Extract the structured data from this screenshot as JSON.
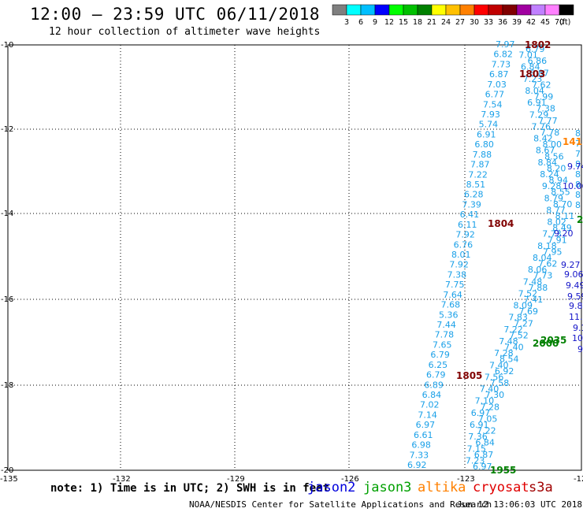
{
  "header": {
    "title": "12:00 – 23:59 UTC 06/11/2018",
    "subtitle": "12 hour collection of altimeter wave heights"
  },
  "colorscale": {
    "swatches": [
      "#7f7f7f",
      "#00ffff",
      "#00bfff",
      "#0000ff",
      "#00ff00",
      "#00c000",
      "#008000",
      "#ffff00",
      "#ffc000",
      "#ff8000",
      "#ff0000",
      "#c00000",
      "#800000",
      "#a000a0",
      "#c080ff",
      "#ff80ff",
      "#000000"
    ],
    "labels": [
      "3",
      "6",
      "9",
      "12",
      "15",
      "18",
      "21",
      "24",
      "27",
      "30",
      "33",
      "36",
      "39",
      "42",
      "45",
      "70"
    ],
    "unit": "(ft)"
  },
  "map": {
    "lat_labels": [
      "-10",
      "-12",
      "-14",
      "-16",
      "-18",
      "-20"
    ],
    "lon_labels": [
      "-135",
      "-132",
      "-129",
      "-126",
      "-123",
      "-12"
    ],
    "times": [
      {
        "text": "1802",
        "color": "#800000"
      },
      {
        "text": "1803",
        "color": "#800000"
      },
      {
        "text": "1804",
        "color": "#800000"
      },
      {
        "text": "1805",
        "color": "#800000"
      },
      {
        "text": "141",
        "color": "#ff8000"
      },
      {
        "text": "2",
        "color": "#008000"
      },
      {
        "text": "2035",
        "color": "#008000"
      },
      {
        "text": "2000",
        "color": "#008000"
      },
      {
        "text": "1955",
        "color": "#008000"
      }
    ],
    "left_track": [
      "7.97",
      "6.82",
      "7.73",
      "6.87",
      "7.03",
      "6.77",
      "7.54",
      "7.93",
      "5.74",
      "6.91",
      "6.80",
      "7.88",
      "7.87",
      "7.22",
      "8.51",
      "6.28",
      "7.39",
      "6.41",
      "6.11",
      "7.92",
      "6.76",
      "8.01",
      "7.92",
      "7.38",
      "7.75",
      "7.64",
      "7.68",
      "5.36",
      "7.44",
      "7.78",
      "7.65",
      "6.79",
      "6.25",
      "6.79",
      "6.89",
      "6.84",
      "7.02",
      "7.14",
      "6.97",
      "6.61",
      "6.98",
      "7.33",
      "6.92"
    ],
    "right_track": [
      "6.79",
      "7.01",
      "6.86",
      "6.84",
      "6.87",
      "7.23",
      "7.62",
      "8.04",
      "7.99",
      "6.91",
      "7.38",
      "7.29",
      "7.77",
      "7.76",
      "7.78",
      "8.42",
      "8.00",
      "8.67",
      "8.56",
      "8.84",
      "8.20",
      "8.24",
      "8.94",
      "9.28",
      "8.55",
      "8.79",
      "8.70",
      "8.77",
      "8.11",
      "8.02",
      "8.49",
      "7.73",
      "7.91",
      "8.18",
      "7.95",
      "8.04",
      "7.62",
      "8.06",
      "7.73",
      "7.48",
      "7.88",
      "7.52",
      "7.41",
      "8.09",
      "7.69",
      "7.83",
      "7.27",
      "7.22",
      "7.52",
      "7.48",
      "7.40",
      "7.28",
      "8.54",
      "7.40",
      "6.92",
      "7.56",
      "7.58",
      "7.40",
      "7.30",
      "7.10",
      "7.28",
      "6.97",
      "7.05",
      "6.91",
      "7.22",
      "7.36",
      "6.84",
      "7.15",
      "6.87",
      "7.23",
      "6.97"
    ],
    "far_right_blue": [
      "9.74",
      "10.06",
      "9.20",
      "9.27",
      "9.06",
      "9.49",
      "9.59",
      "9.8",
      "11.0",
      "9.1",
      "10",
      "9"
    ],
    "far_right_cyan": [
      "8",
      "7",
      "7",
      "8",
      "8",
      "8",
      "8",
      "8"
    ]
  },
  "footer": {
    "note": "note: 1) Time is in UTC; 2) SWH is in feet",
    "satellites": [
      {
        "name": "jason2",
        "color": "#0000dd"
      },
      {
        "name": "jason3",
        "color": "#00a000"
      },
      {
        "name": "altika",
        "color": "#ff8000"
      },
      {
        "name": "cryosat",
        "color": "#e00000"
      },
      {
        "name": "s3a",
        "color": "#a00000"
      }
    ],
    "credit": "NOAA/NESDIS Center for Satellite Applications and Research",
    "timestamp": "Jun 12 13:06:03 UTC 2018"
  }
}
